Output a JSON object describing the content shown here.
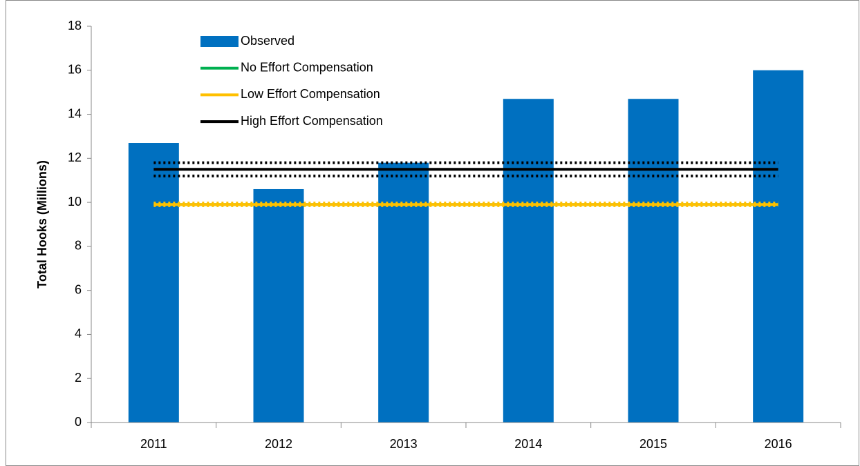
{
  "chart_data": {
    "type": "bar",
    "y_label": "Total Hooks (Millions)",
    "categories": [
      "2011",
      "2012",
      "2013",
      "2014",
      "2015",
      "2016"
    ],
    "series": [
      {
        "name": "Observed",
        "type": "bar",
        "color": "#0070c0",
        "values": [
          12.7,
          10.6,
          11.8,
          14.7,
          14.7,
          16.0
        ]
      },
      {
        "name": "No Effort Compensation",
        "type": "line",
        "color": "#00b050",
        "values": [
          9.9,
          9.9,
          9.9,
          9.9,
          9.9,
          9.9
        ]
      },
      {
        "name": "Low Effort Compensation",
        "type": "line",
        "color": "#ffc000",
        "values": [
          9.9,
          9.9,
          9.9,
          9.9,
          9.9,
          9.9
        ],
        "lower": [
          9.85,
          9.85,
          9.85,
          9.85,
          9.85,
          9.85
        ],
        "upper": [
          9.97,
          9.97,
          9.97,
          9.97,
          9.97,
          9.97
        ]
      },
      {
        "name": "High Effort Compensation",
        "type": "line",
        "color": "#000000",
        "values": [
          11.5,
          11.5,
          11.5,
          11.5,
          11.5,
          11.5
        ],
        "lower": [
          11.2,
          11.2,
          11.2,
          11.2,
          11.2,
          11.2
        ],
        "upper": [
          11.8,
          11.8,
          11.8,
          11.8,
          11.8,
          11.8
        ]
      }
    ],
    "ylim": [
      0,
      18
    ],
    "yticks": [
      0,
      2,
      4,
      6,
      8,
      10,
      12,
      14,
      16,
      18
    ],
    "grid": false,
    "legend": "top-left"
  }
}
